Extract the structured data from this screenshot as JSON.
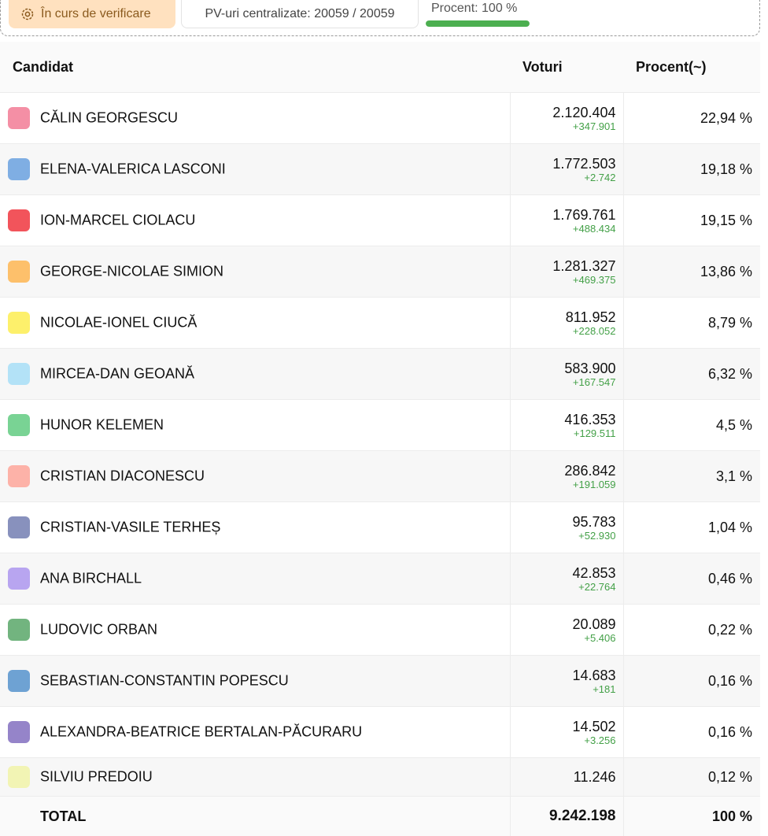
{
  "status": {
    "verification_label": "În curs de verificare",
    "pv_label": "PV-uri centralizate: 20059 / 20059",
    "progress_label": "Procent: 100 %",
    "progress_fraction": 1.0
  },
  "table": {
    "headers": {
      "candidate": "Candidat",
      "votes": "Voturi",
      "percent": "Procent(~)"
    },
    "rows": [
      {
        "name": "CĂLIN GEORGESCU",
        "votes": "2.120.404",
        "delta": "+347.901",
        "percent": "22,94 %",
        "color": "#f48fa5"
      },
      {
        "name": "ELENA-VALERICA LASCONI",
        "votes": "1.772.503",
        "delta": "+2.742",
        "percent": "19,18 %",
        "color": "#7faee3"
      },
      {
        "name": "ION-MARCEL CIOLACU",
        "votes": "1.769.761",
        "delta": "+488.434",
        "percent": "19,15 %",
        "color": "#f2545b"
      },
      {
        "name": "GEORGE-NICOLAE SIMION",
        "votes": "1.281.327",
        "delta": "+469.375",
        "percent": "13,86 %",
        "color": "#fdc06b"
      },
      {
        "name": "NICOLAE-IONEL CIUCĂ",
        "votes": "811.952",
        "delta": "+228.052",
        "percent": "8,79 %",
        "color": "#fdf06b"
      },
      {
        "name": "MIRCEA-DAN GEOANĂ",
        "votes": "583.900",
        "delta": "+167.547",
        "percent": "6,32 %",
        "color": "#b3e2f7"
      },
      {
        "name": "HUNOR KELEMEN",
        "votes": "416.353",
        "delta": "+129.511",
        "percent": "4,5 %",
        "color": "#79d394"
      },
      {
        "name": "CRISTIAN DIACONESCU",
        "votes": "286.842",
        "delta": "+191.059",
        "percent": "3,1 %",
        "color": "#fdb2a8"
      },
      {
        "name": "CRISTIAN-VASILE TERHEȘ",
        "votes": "95.783",
        "delta": "+52.930",
        "percent": "1,04 %",
        "color": "#8891bd"
      },
      {
        "name": "ANA BIRCHALL",
        "votes": "42.853",
        "delta": "+22.764",
        "percent": "0,46 %",
        "color": "#b8a5f0"
      },
      {
        "name": "LUDOVIC ORBAN",
        "votes": "20.089",
        "delta": "+5.406",
        "percent": "0,22 %",
        "color": "#72b47f"
      },
      {
        "name": "SEBASTIAN-CONSTANTIN POPESCU",
        "votes": "14.683",
        "delta": "+181",
        "percent": "0,16 %",
        "color": "#6ea2d3"
      },
      {
        "name": "ALEXANDRA-BEATRICE BERTALAN-PĂCURARU",
        "votes": "14.502",
        "delta": "+3.256",
        "percent": "0,16 %",
        "color": "#9584c9"
      },
      {
        "name": "SILVIU PREDOIU",
        "votes": "11.246",
        "delta": "",
        "percent": "0,12 %",
        "color": "#f2f4b4"
      }
    ],
    "total": {
      "label": "TOTAL",
      "votes": "9.242.198",
      "percent": "100 %"
    }
  }
}
